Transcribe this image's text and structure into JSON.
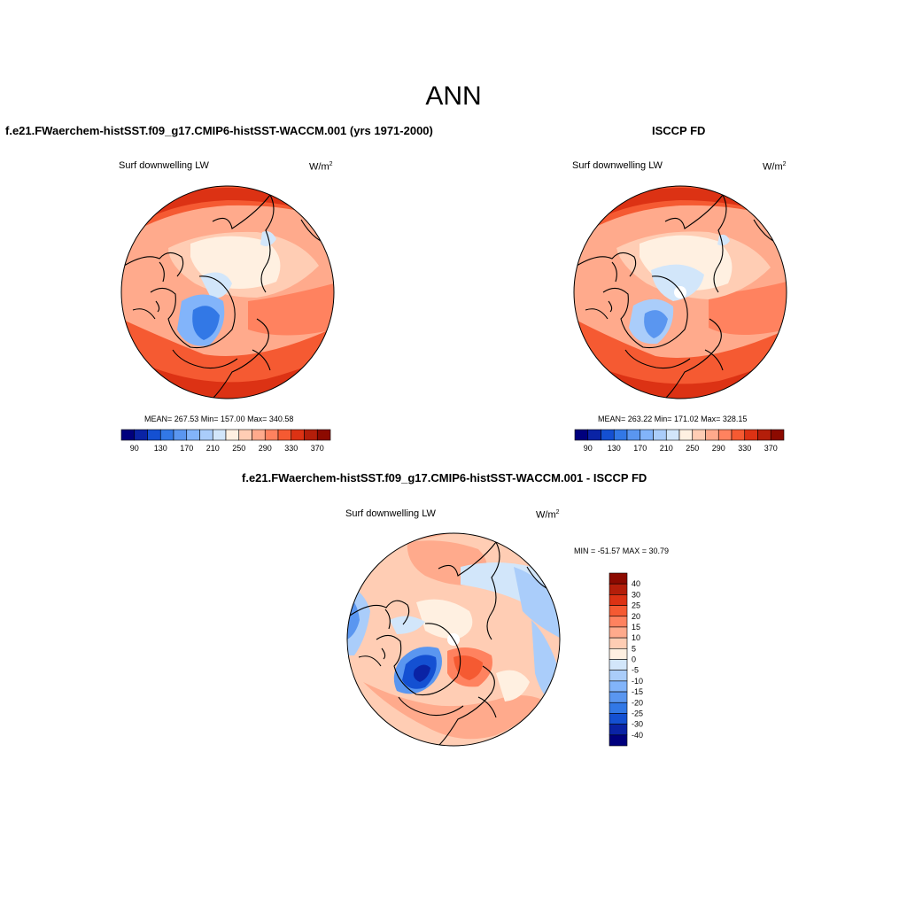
{
  "figure": {
    "title": "ANN"
  },
  "panels": [
    {
      "title": "f.e21.FWaerchem-histSST.f09_g17.CMIP6-histSST-WACCM.001 (yrs 1971-2000)",
      "variable": "Surf downwelling LW",
      "units": "W/m",
      "units_sup": "2",
      "stats": "MEAN= 267.53  Min= 157.00  Max= 340.58"
    },
    {
      "title": "ISCCP FD",
      "variable": "Surf downwelling LW",
      "units": "W/m",
      "units_sup": "2",
      "stats": "MEAN= 263.22  Min= 171.02  Max= 328.15"
    },
    {
      "title": "f.e21.FWaerchem-histSST.f09_g17.CMIP6-histSST-WACCM.001 - ISCCP FD",
      "variable": "Surf downwelling LW",
      "units": "W/m",
      "units_sup": "2",
      "stats": "MIN = -51.57 MAX =  30.79"
    }
  ],
  "chart_data": [
    {
      "type": "heatmap",
      "projection": "north-polar-stereographic",
      "title": "f.e21.FWaerchem-histSST.f09_g17.CMIP6-histSST-WACCM.001 (yrs 1971-2000)",
      "variable": "Surf downwelling LW",
      "units": "W/m2",
      "mean": 267.53,
      "min": 157.0,
      "max": 340.58,
      "colorbar": {
        "orientation": "horizontal",
        "levels": [
          90,
          110,
          130,
          150,
          170,
          190,
          210,
          230,
          250,
          270,
          290,
          310,
          330,
          350,
          370
        ],
        "tick_labels": [
          "90",
          "130",
          "170",
          "210",
          "250",
          "290",
          "330",
          "370"
        ],
        "colors": [
          "#00007d",
          "#0a23a5",
          "#1450d2",
          "#3278e6",
          "#5a96f0",
          "#82b4fa",
          "#aacdfa",
          "#d2e6fa",
          "#fff0e1",
          "#ffcdb4",
          "#ffaa8c",
          "#ff825f",
          "#f55a32",
          "#dc3214",
          "#b41e0a",
          "#8c0a00"
        ]
      }
    },
    {
      "type": "heatmap",
      "projection": "north-polar-stereographic",
      "title": "ISCCP FD",
      "variable": "Surf downwelling LW",
      "units": "W/m2",
      "mean": 263.22,
      "min": 171.02,
      "max": 328.15,
      "colorbar": {
        "orientation": "horizontal",
        "levels": [
          90,
          110,
          130,
          150,
          170,
          190,
          210,
          230,
          250,
          270,
          290,
          310,
          330,
          350,
          370
        ],
        "tick_labels": [
          "90",
          "130",
          "170",
          "210",
          "250",
          "290",
          "330",
          "370"
        ],
        "colors": [
          "#00007d",
          "#0a23a5",
          "#1450d2",
          "#3278e6",
          "#5a96f0",
          "#82b4fa",
          "#aacdfa",
          "#d2e6fa",
          "#fff0e1",
          "#ffcdb4",
          "#ffaa8c",
          "#ff825f",
          "#f55a32",
          "#dc3214",
          "#b41e0a",
          "#8c0a00"
        ]
      }
    },
    {
      "type": "heatmap",
      "projection": "north-polar-stereographic",
      "title": "f.e21.FWaerchem-histSST.f09_g17.CMIP6-histSST-WACCM.001 - ISCCP FD",
      "variable": "Surf downwelling LW",
      "units": "W/m2",
      "min": -51.57,
      "max": 30.79,
      "colorbar": {
        "orientation": "vertical",
        "levels": [
          -40,
          -30,
          -25,
          -20,
          -15,
          -10,
          -5,
          0,
          5,
          10,
          15,
          20,
          25,
          30,
          40
        ],
        "tick_labels": [
          "40",
          "30",
          "25",
          "20",
          "15",
          "10",
          "5",
          "0",
          "-5",
          "-10",
          "-15",
          "-20",
          "-25",
          "-30",
          "-40"
        ],
        "colors": [
          "#00007d",
          "#0a23a5",
          "#1450d2",
          "#3278e6",
          "#5a96f0",
          "#82b4fa",
          "#aacdfa",
          "#d2e6fa",
          "#fff0e1",
          "#ffcdb4",
          "#ffaa8c",
          "#ff825f",
          "#f55a32",
          "#dc3214",
          "#b41e0a",
          "#8c0a00"
        ]
      }
    }
  ]
}
